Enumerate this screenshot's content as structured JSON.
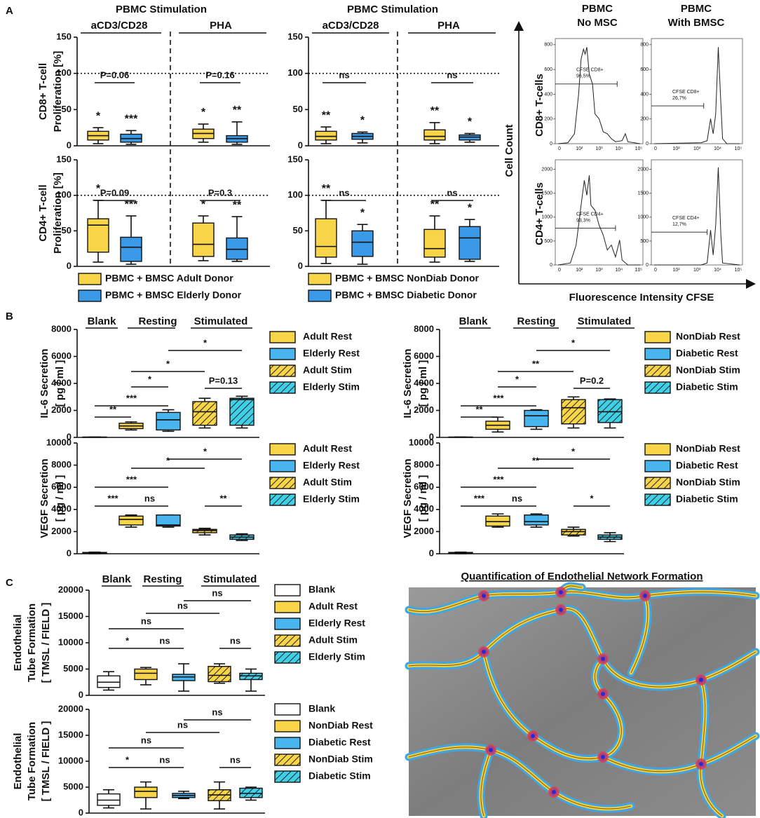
{
  "panel_labels": [
    "A",
    "B",
    "C"
  ],
  "chart_data": [
    {
      "type": "box",
      "title": "PBMC Stimulation",
      "categories": [
        "aCD3/CD28",
        "PHA"
      ],
      "ylabel": [
        "CD8+ T-cell",
        "Proliferation [%]"
      ],
      "ylim": [
        0,
        150
      ],
      "yticks": [
        0,
        50,
        100,
        150
      ],
      "refline": 100,
      "comparisons": [
        "P=0.06",
        "P=0.16"
      ],
      "series": [
        {
          "color": "#f7d448",
          "labels": [
            "*",
            "*"
          ],
          "values": [
            {
              "min": 3,
              "q1": 8,
              "median": 14,
              "q3": 20,
              "max": 25
            },
            {
              "min": 5,
              "q1": 10,
              "median": 17,
              "q3": 23,
              "max": 30
            }
          ]
        },
        {
          "color": "#3b9ae8",
          "labels": [
            "***",
            "**"
          ],
          "values": [
            {
              "min": 2,
              "q1": 5,
              "median": 10,
              "q3": 16,
              "max": 21
            },
            {
              "min": 2,
              "q1": 5,
              "median": 10,
              "q3": 14,
              "max": 33
            }
          ]
        }
      ]
    },
    {
      "type": "box",
      "ylabel": [
        "CD4+ T-cell",
        "Proliferation [%]"
      ],
      "ylim": [
        0,
        150
      ],
      "yticks": [
        0,
        50,
        100,
        150
      ],
      "refline": 100,
      "comparisons": [
        "P=0.09",
        "P=0.3"
      ],
      "series": [
        {
          "name": "PBMC + BMSC Adult Donor",
          "color": "#f7d448",
          "labels": [
            "*",
            "*"
          ],
          "values": [
            {
              "min": 6,
              "q1": 20,
              "median": 58,
              "q3": 67,
              "max": 93
            },
            {
              "min": 8,
              "q1": 14,
              "median": 31,
              "q3": 61,
              "max": 71
            }
          ]
        },
        {
          "name": "PBMC + BMSC Elderly Donor",
          "color": "#3b9ae8",
          "labels": [
            "***",
            "**"
          ],
          "values": [
            {
              "min": 3,
              "q1": 7,
              "median": 27,
              "q3": 41,
              "max": 71
            },
            {
              "min": 7,
              "q1": 10,
              "median": 24,
              "q3": 40,
              "max": 70
            }
          ]
        }
      ]
    },
    {
      "type": "box",
      "title": "PBMC Stimulation",
      "categories": [
        "aCD3/CD28",
        "PHA"
      ],
      "ylim": [
        0,
        150
      ],
      "yticks": [
        0,
        50,
        100,
        150
      ],
      "refline": 100,
      "comparisons": [
        "ns",
        "ns"
      ],
      "series": [
        {
          "color": "#f7d448",
          "labels": [
            "**",
            "**"
          ],
          "values": [
            {
              "min": 3,
              "q1": 8,
              "median": 13,
              "q3": 20,
              "max": 26
            },
            {
              "min": 3,
              "q1": 8,
              "median": 13,
              "q3": 22,
              "max": 32
            }
          ]
        },
        {
          "color": "#3b9ae8",
          "labels": [
            "*",
            "*"
          ],
          "values": [
            {
              "min": 4,
              "q1": 9,
              "median": 13,
              "q3": 17,
              "max": 19
            },
            {
              "min": 5,
              "q1": 8,
              "median": 12,
              "q3": 15,
              "max": 17
            }
          ]
        }
      ]
    },
    {
      "type": "box",
      "ylim": [
        0,
        150
      ],
      "yticks": [
        0,
        50,
        100,
        150
      ],
      "refline": 100,
      "comparisons": [
        "ns",
        "ns"
      ],
      "series": [
        {
          "name": "PBMC + BMSC NonDiab Donor",
          "color": "#f7d448",
          "labels": [
            "**",
            "**"
          ],
          "values": [
            {
              "min": 4,
              "q1": 13,
              "median": 28,
              "q3": 67,
              "max": 93
            },
            {
              "min": 6,
              "q1": 13,
              "median": 25,
              "q3": 52,
              "max": 71
            }
          ]
        },
        {
          "name": "PBMC + BMSC Diabetic Donor",
          "color": "#3b9ae8",
          "labels": [
            "*",
            "*"
          ],
          "values": [
            {
              "min": 3,
              "q1": 14,
              "median": 34,
              "q3": 50,
              "max": 59
            },
            {
              "min": 7,
              "q1": 10,
              "median": 40,
              "q3": 56,
              "max": 66
            }
          ]
        }
      ]
    },
    {
      "type": "box",
      "categories": [
        "Blank",
        "Resting",
        "Stimulated"
      ],
      "ylabel": [
        "IL-6 Secretion",
        "[ pg / ml ]"
      ],
      "ylim": [
        0,
        8000
      ],
      "yticks": [
        0,
        2000,
        4000,
        6000,
        8000
      ],
      "comparisons": [
        "**",
        "***",
        "*",
        "*",
        "*",
        "P=0.13"
      ],
      "series": [
        {
          "color": "#ffffff",
          "values": [
            {
              "min": 10,
              "q1": 15,
              "median": 20,
              "q3": 25,
              "max": 30
            }
          ]
        },
        {
          "name": "Adult Rest",
          "color": "#f7d448",
          "values": [
            {
              "min": 550,
              "q1": 650,
              "median": 850,
              "q3": 1050,
              "max": 1150
            }
          ]
        },
        {
          "name": "Elderly Rest",
          "color": "#49b5ef",
          "values": [
            {
              "min": 450,
              "q1": 550,
              "median": 1300,
              "q3": 1850,
              "max": 2050
            }
          ]
        },
        {
          "name": "Adult Stim",
          "color": "#f7d448",
          "hatch": true,
          "values": [
            {
              "min": 700,
              "q1": 900,
              "median": 1900,
              "q3": 2650,
              "max": 2900
            }
          ]
        },
        {
          "name": "Elderly Stim",
          "color": "#3fcfe6",
          "hatch": true,
          "values": [
            {
              "min": 700,
              "q1": 900,
              "median": 2800,
              "q3": 2900,
              "max": 3050
            }
          ]
        }
      ]
    },
    {
      "type": "box",
      "ylabel": [
        "VEGF Secretion",
        "[ pg / ml ]"
      ],
      "ylim": [
        0,
        10000
      ],
      "yticks": [
        0,
        2000,
        4000,
        6000,
        8000,
        10000
      ],
      "comparisons": [
        "***",
        "***",
        "ns",
        "*",
        "*",
        "**"
      ],
      "series": [
        {
          "color": "#ffffff",
          "values": [
            {
              "min": 0,
              "q1": 50,
              "median": 80,
              "q3": 120,
              "max": 150
            }
          ]
        },
        {
          "name": "Adult Rest",
          "color": "#f7d448",
          "values": [
            {
              "min": 2400,
              "q1": 2600,
              "median": 3100,
              "q3": 3400,
              "max": 3500
            }
          ]
        },
        {
          "name": "Elderly Rest",
          "color": "#49b5ef",
          "values": [
            {
              "min": 2400,
              "q1": 2500,
              "median": 2600,
              "q3": 3500,
              "max": 3500
            }
          ]
        },
        {
          "name": "Adult Stim",
          "color": "#f7d448",
          "hatch": true,
          "values": [
            {
              "min": 1700,
              "q1": 1900,
              "median": 2100,
              "q3": 2200,
              "max": 2300
            }
          ]
        },
        {
          "name": "Elderly Stim",
          "color": "#3fcfe6",
          "hatch": true,
          "values": [
            {
              "min": 1200,
              "q1": 1300,
              "median": 1500,
              "q3": 1700,
              "max": 1800
            }
          ]
        }
      ]
    },
    {
      "type": "box",
      "categories": [
        "Blank",
        "Resting",
        "Stimulated"
      ],
      "ylabel": [
        "IL-6 Secretion",
        "[ pg / ml ]"
      ],
      "ylim": [
        0,
        8000
      ],
      "yticks": [
        0,
        2000,
        4000,
        6000,
        8000
      ],
      "comparisons": [
        "**",
        "***",
        "*",
        "**",
        "*",
        "P=0.2"
      ],
      "series": [
        {
          "color": "#ffffff",
          "values": [
            {
              "min": 10,
              "q1": 15,
              "median": 20,
              "q3": 25,
              "max": 30
            }
          ]
        },
        {
          "name": "NonDiab Rest",
          "color": "#f7d448",
          "values": [
            {
              "min": 400,
              "q1": 600,
              "median": 900,
              "q3": 1200,
              "max": 1500
            }
          ]
        },
        {
          "name": "Diabetic Rest",
          "color": "#49b5ef",
          "values": [
            {
              "min": 600,
              "q1": 800,
              "median": 1600,
              "q3": 2000,
              "max": 2050
            }
          ]
        },
        {
          "name": "NonDiab Stim",
          "color": "#f7d448",
          "hatch": true,
          "values": [
            {
              "min": 700,
              "q1": 1000,
              "median": 2200,
              "q3": 2800,
              "max": 3000
            }
          ]
        },
        {
          "name": "Diabetic Stim",
          "color": "#3fcfe6",
          "hatch": true,
          "values": [
            {
              "min": 700,
              "q1": 1100,
              "median": 1900,
              "q3": 2800,
              "max": 2850
            }
          ]
        }
      ]
    },
    {
      "type": "box",
      "ylabel": [
        "VEGF Secretion",
        "[ pg / ml ]"
      ],
      "ylim": [
        0,
        10000
      ],
      "yticks": [
        0,
        2000,
        4000,
        6000,
        8000,
        10000
      ],
      "comparisons": [
        "***",
        "***",
        "ns",
        "**",
        "*",
        "*"
      ],
      "series": [
        {
          "color": "#ffffff",
          "values": [
            {
              "min": 0,
              "q1": 50,
              "median": 80,
              "q3": 120,
              "max": 150
            }
          ]
        },
        {
          "name": "NonDiab Rest",
          "color": "#f7d448",
          "values": [
            {
              "min": 2400,
              "q1": 2500,
              "median": 2900,
              "q3": 3400,
              "max": 3600
            }
          ]
        },
        {
          "name": "Diabetic Rest",
          "color": "#49b5ef",
          "values": [
            {
              "min": 2400,
              "q1": 2600,
              "median": 2900,
              "q3": 3500,
              "max": 3600
            }
          ]
        },
        {
          "name": "NonDiab Stim",
          "color": "#f7d448",
          "hatch": true,
          "values": [
            {
              "min": 1600,
              "q1": 1700,
              "median": 2000,
              "q3": 2200,
              "max": 2400
            }
          ]
        },
        {
          "name": "Diabetic Stim",
          "color": "#3fcfe6",
          "hatch": true,
          "values": [
            {
              "min": 1100,
              "q1": 1300,
              "median": 1500,
              "q3": 1700,
              "max": 1900
            }
          ]
        }
      ]
    },
    {
      "type": "box",
      "categories": [
        "Blank",
        "Resting",
        "Stimulated"
      ],
      "ylabel": [
        "Endothelial",
        "Tube Formation",
        "[ TMSL / FIELD ]"
      ],
      "ylim": [
        0,
        20000
      ],
      "yticks": [
        0,
        5000,
        10000,
        15000,
        20000
      ],
      "comparisons": [
        "*",
        "ns",
        "ns",
        "ns",
        "ns",
        "ns"
      ],
      "series": [
        {
          "name": "Blank",
          "color": "#ffffff",
          "values": [
            {
              "min": 1000,
              "q1": 1500,
              "median": 2500,
              "q3": 3700,
              "max": 4500
            }
          ]
        },
        {
          "name": "Adult Rest",
          "color": "#f7d448",
          "values": [
            {
              "min": 2000,
              "q1": 3000,
              "median": 4200,
              "q3": 5000,
              "max": 5300
            }
          ]
        },
        {
          "name": "Elderly Rest",
          "color": "#49b5ef",
          "values": [
            {
              "min": 800,
              "q1": 2800,
              "median": 3500,
              "q3": 4000,
              "max": 6000
            }
          ]
        },
        {
          "name": "Adult Stim",
          "color": "#f7d448",
          "hatch": true,
          "values": [
            {
              "min": 2300,
              "q1": 2600,
              "median": 3800,
              "q3": 5500,
              "max": 6000
            }
          ]
        },
        {
          "name": "Elderly Stim",
          "color": "#3fcfe6",
          "hatch": true,
          "values": [
            {
              "min": 800,
              "q1": 3000,
              "median": 3700,
              "q3": 4200,
              "max": 5000
            }
          ]
        }
      ]
    },
    {
      "type": "box",
      "ylabel": [
        "Endothelial",
        "Tube Formation",
        "[ TMSL / FIELD ]"
      ],
      "ylim": [
        0,
        20000
      ],
      "yticks": [
        0,
        5000,
        10000,
        15000,
        20000
      ],
      "comparisons": [
        "*",
        "ns",
        "ns",
        "ns",
        "ns",
        "ns"
      ],
      "series": [
        {
          "name": "Blank",
          "color": "#ffffff",
          "values": [
            {
              "min": 1000,
              "q1": 1500,
              "median": 2500,
              "q3": 3700,
              "max": 4500
            }
          ]
        },
        {
          "name": "NonDiab Rest",
          "color": "#f7d448",
          "values": [
            {
              "min": 800,
              "q1": 3000,
              "median": 4200,
              "q3": 5000,
              "max": 6000
            }
          ]
        },
        {
          "name": "Diabetic Rest",
          "color": "#49b5ef",
          "values": [
            {
              "min": 2800,
              "q1": 3000,
              "median": 3400,
              "q3": 3800,
              "max": 4200
            }
          ]
        },
        {
          "name": "NonDiab Stim",
          "color": "#f7d448",
          "hatch": true,
          "values": [
            {
              "min": 800,
              "q1": 2400,
              "median": 3500,
              "q3": 4500,
              "max": 6000
            }
          ]
        },
        {
          "name": "Diabetic Stim",
          "color": "#3fcfe6",
          "hatch": true,
          "values": [
            {
              "min": 2500,
              "q1": 3000,
              "median": 3800,
              "q3": 4800,
              "max": 5000
            }
          ]
        }
      ]
    }
  ],
  "flow": {
    "columns": [
      [
        "PBMC",
        "No MSC"
      ],
      [
        "PBMC",
        "With BMSC"
      ]
    ],
    "rows": [
      "CD8+ T-cells",
      "CD4+ T-cells"
    ],
    "ylabel": "Cell Count",
    "xlabel": "Fluorescence Intensity CFSE",
    "xticks": [
      "0",
      "10²",
      "10³",
      "10⁴",
      "10⁵"
    ],
    "plots": [
      {
        "gate": "CFSE CD8+",
        "percent": "96,5%",
        "ylim": [
          0,
          850
        ],
        "yticks": [
          0,
          200,
          400,
          600,
          800
        ]
      },
      {
        "gate": "CFSE CD8+",
        "percent": "26,7%",
        "ylim": [
          0,
          850
        ],
        "yticks": [
          0,
          200,
          400,
          600,
          800
        ]
      },
      {
        "gate": "CFSE CD4+",
        "percent": "93,3%",
        "ylim": [
          0,
          2200
        ],
        "yticks": [
          0,
          500,
          1000,
          1500,
          2000
        ]
      },
      {
        "gate": "CFSE CD4+",
        "percent": "12,7%",
        "ylim": [
          0,
          2200
        ],
        "yticks": [
          0,
          500,
          1000,
          1500,
          2000
        ]
      }
    ]
  },
  "network": {
    "title": "Quantification of Endothelial Network Formation"
  }
}
